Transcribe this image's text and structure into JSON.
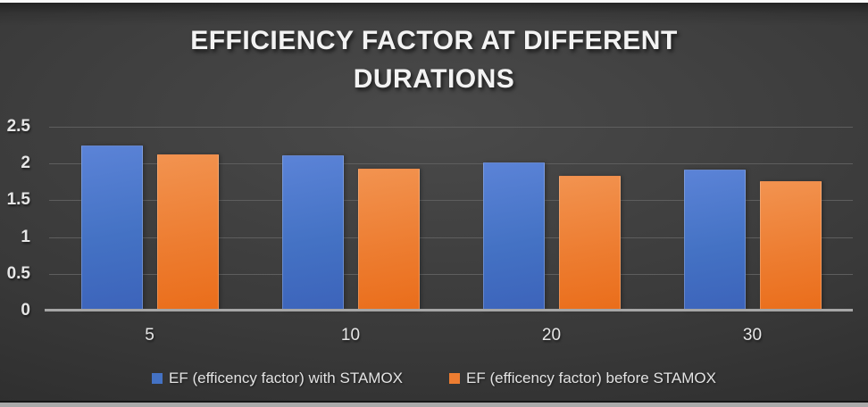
{
  "chart_data": {
    "type": "bar",
    "title": "EFFICIENCY FACTOR AT DIFFERENT DURATIONS",
    "xlabel": "",
    "ylabel": "",
    "categories": [
      "5",
      "10",
      "20",
      "30"
    ],
    "series": [
      {
        "name": "EF (efficency factor) with STAMOX",
        "color": "#4472C4",
        "color_light": "#5b83d7",
        "color_dark": "#3c63ba",
        "values": [
          2.25,
          2.11,
          2.01,
          1.92
        ]
      },
      {
        "name": "EF (efficency factor) before STAMOX",
        "color": "#ED7D31",
        "color_light": "#f29350",
        "color_dark": "#ea6d1a",
        "values": [
          2.13,
          1.93,
          1.83,
          1.76
        ]
      }
    ],
    "ylim": [
      0,
      2.5
    ],
    "yticks": [
      "2.5",
      "2",
      "1.5",
      "1",
      "0.5",
      "0"
    ],
    "grid": true,
    "legend_position": "bottom"
  },
  "theme": {
    "bg_center": "#4a4a4a",
    "bg_edge": "#1f1f1f",
    "gridline": "#5e5e5e",
    "axis_line": "#a6a6a6",
    "tick_label": "#e6e6e6",
    "title_color": "#f3f3f3",
    "legend_text": "#e3e3e3",
    "top_strip": "#fafafa",
    "bottom_strip": "#a9a9a9"
  }
}
